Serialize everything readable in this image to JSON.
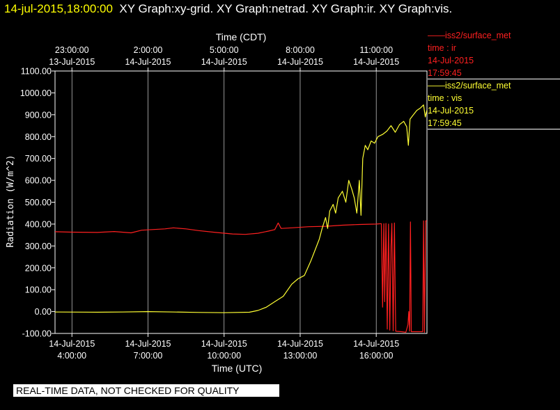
{
  "header": {
    "timestamp": "14-jul-2015,18:00:00",
    "graphs": "XY Graph:xy-grid.  XY Graph:netrad.  XY Graph:ir.  XY Graph:vis."
  },
  "legend": [
    {
      "line1": "——iss2/surface_met",
      "line2": "time : ir",
      "line3": "14-Jul-2015",
      "line4": "17:59:45",
      "color": "#ff2020"
    },
    {
      "line1": "——iss2/surface_met",
      "line2": "time : vis",
      "line3": "14-Jul-2015",
      "line4": "17:59:45",
      "color": "#ffff33"
    }
  ],
  "qc_banner": "REAL-TIME DATA, NOT CHECKED FOR QUALITY",
  "chart_data": {
    "type": "line",
    "title": "",
    "xlabel": "Time (UTC)",
    "xlabel_top": "Time (CDT)",
    "ylabel": "Radiation (W/m^2)",
    "xlim": [
      "2015-07-14T03:20:00Z",
      "2015-07-14T18:00:00Z"
    ],
    "ylim": [
      -100,
      1100
    ],
    "grid": "vertical lines",
    "x_ticks": [
      {
        "x": "2015-07-14T04:00:00Z",
        "date": "14-Jul-2015",
        "time": "4:00:00"
      },
      {
        "x": "2015-07-14T07:00:00Z",
        "date": "14-Jul-2015",
        "time": "7:00:00"
      },
      {
        "x": "2015-07-14T10:00:00Z",
        "date": "14-Jul-2015",
        "time": "10:00:00"
      },
      {
        "x": "2015-07-14T13:00:00Z",
        "date": "14-Jul-2015",
        "time": "13:00:00"
      },
      {
        "x": "2015-07-14T16:00:00Z",
        "date": "14-Jul-2015",
        "time": "16:00:00"
      }
    ],
    "x_ticks_top": [
      {
        "x": "2015-07-14T04:00:00Z",
        "time": "23:00:00",
        "date": "13-Jul-2015"
      },
      {
        "x": "2015-07-14T07:00:00Z",
        "time": "2:00:00",
        "date": "14-Jul-2015"
      },
      {
        "x": "2015-07-14T10:00:00Z",
        "time": "5:00:00",
        "date": "14-Jul-2015"
      },
      {
        "x": "2015-07-14T13:00:00Z",
        "time": "8:00:00",
        "date": "14-Jul-2015"
      },
      {
        "x": "2015-07-14T16:00:00Z",
        "time": "11:00:00",
        "date": "14-Jul-2015"
      }
    ],
    "y_ticks": [
      "1100.00",
      "1000.00",
      "900.00",
      "800.00",
      "700.00",
      "600.00",
      "500.00",
      "400.00",
      "300.00",
      "200.00",
      "100.00",
      "0.00",
      "-100.00"
    ],
    "series": [
      {
        "name": "ir",
        "color": "#ff2020",
        "points": [
          [
            "2015-07-14T03:20:00Z",
            365
          ],
          [
            "2015-07-14T04:00:00Z",
            363
          ],
          [
            "2015-07-14T05:00:00Z",
            362
          ],
          [
            "2015-07-14T05:40:00Z",
            366
          ],
          [
            "2015-07-14T06:20:00Z",
            360
          ],
          [
            "2015-07-14T06:45:00Z",
            372
          ],
          [
            "2015-07-14T07:10:00Z",
            375
          ],
          [
            "2015-07-14T07:40:00Z",
            378
          ],
          [
            "2015-07-14T08:00:00Z",
            383
          ],
          [
            "2015-07-14T08:30:00Z",
            378
          ],
          [
            "2015-07-14T09:00:00Z",
            370
          ],
          [
            "2015-07-14T09:40:00Z",
            362
          ],
          [
            "2015-07-14T10:20:00Z",
            355
          ],
          [
            "2015-07-14T10:50:00Z",
            353
          ],
          [
            "2015-07-14T11:20:00Z",
            358
          ],
          [
            "2015-07-14T11:45:00Z",
            368
          ],
          [
            "2015-07-14T12:00:00Z",
            375
          ],
          [
            "2015-07-14T12:08:00Z",
            405
          ],
          [
            "2015-07-14T12:15:00Z",
            380
          ],
          [
            "2015-07-14T12:40:00Z",
            383
          ],
          [
            "2015-07-14T13:20:00Z",
            388
          ],
          [
            "2015-07-14T14:00:00Z",
            390
          ],
          [
            "2015-07-14T14:40:00Z",
            395
          ],
          [
            "2015-07-14T15:20:00Z",
            398
          ],
          [
            "2015-07-14T16:00:00Z",
            400
          ],
          [
            "2015-07-14T16:12:00Z",
            402
          ],
          [
            "2015-07-14T16:15:00Z",
            20
          ],
          [
            "2015-07-14T16:18:00Z",
            402
          ],
          [
            "2015-07-14T16:20:00Z",
            45
          ],
          [
            "2015-07-14T16:23:00Z",
            403
          ],
          [
            "2015-07-14T16:26:00Z",
            -80
          ],
          [
            "2015-07-14T16:29:00Z",
            400
          ],
          [
            "2015-07-14T16:32:00Z",
            -85
          ],
          [
            "2015-07-14T16:35:00Z",
            300
          ],
          [
            "2015-07-14T16:37:00Z",
            403
          ],
          [
            "2015-07-14T16:40:00Z",
            -88
          ],
          [
            "2015-07-14T16:43:00Z",
            405
          ],
          [
            "2015-07-14T16:46:00Z",
            -90
          ],
          [
            "2015-07-14T17:00:00Z",
            -92
          ],
          [
            "2015-07-14T17:10:00Z",
            -95
          ],
          [
            "2015-07-14T17:15:00Z",
            -60
          ],
          [
            "2015-07-14T17:17:00Z",
            0
          ],
          [
            "2015-07-14T17:19:00Z",
            -90
          ],
          [
            "2015-07-14T17:21:00Z",
            410
          ],
          [
            "2015-07-14T17:23:00Z",
            -92
          ],
          [
            "2015-07-14T17:40:00Z",
            -92
          ],
          [
            "2015-07-14T17:50:00Z",
            -92
          ],
          [
            "2015-07-14T17:52:00Z",
            415
          ],
          [
            "2015-07-14T17:54:00Z",
            -95
          ],
          [
            "2015-07-14T17:57:00Z",
            415
          ],
          [
            "2015-07-14T17:59:45Z",
            415
          ]
        ]
      },
      {
        "name": "vis",
        "color": "#ffff33",
        "points": [
          [
            "2015-07-14T03:20:00Z",
            -2
          ],
          [
            "2015-07-14T05:00:00Z",
            -3
          ],
          [
            "2015-07-14T06:00:00Z",
            -2
          ],
          [
            "2015-07-14T07:00:00Z",
            0
          ],
          [
            "2015-07-14T08:00:00Z",
            -2
          ],
          [
            "2015-07-14T09:00:00Z",
            -4
          ],
          [
            "2015-07-14T10:00:00Z",
            -5
          ],
          [
            "2015-07-14T11:00:00Z",
            -3
          ],
          [
            "2015-07-14T11:20:00Z",
            5
          ],
          [
            "2015-07-14T11:40:00Z",
            20
          ],
          [
            "2015-07-14T12:00:00Z",
            45
          ],
          [
            "2015-07-14T12:20:00Z",
            70
          ],
          [
            "2015-07-14T12:40:00Z",
            125
          ],
          [
            "2015-07-14T12:55:00Z",
            150
          ],
          [
            "2015-07-14T13:10:00Z",
            165
          ],
          [
            "2015-07-14T13:25:00Z",
            230
          ],
          [
            "2015-07-14T13:35:00Z",
            280
          ],
          [
            "2015-07-14T13:45:00Z",
            330
          ],
          [
            "2015-07-14T13:52:00Z",
            380
          ],
          [
            "2015-07-14T14:00:00Z",
            430
          ],
          [
            "2015-07-14T14:05:00Z",
            380
          ],
          [
            "2015-07-14T14:10:00Z",
            460
          ],
          [
            "2015-07-14T14:18:00Z",
            490
          ],
          [
            "2015-07-14T14:24:00Z",
            450
          ],
          [
            "2015-07-14T14:30:00Z",
            520
          ],
          [
            "2015-07-14T14:40:00Z",
            550
          ],
          [
            "2015-07-14T14:48:00Z",
            500
          ],
          [
            "2015-07-14T14:55:00Z",
            600
          ],
          [
            "2015-07-14T15:02:00Z",
            560
          ],
          [
            "2015-07-14T15:08:00Z",
            520
          ],
          [
            "2015-07-14T15:14:00Z",
            450
          ],
          [
            "2015-07-14T15:20:00Z",
            600
          ],
          [
            "2015-07-14T15:24:00Z",
            440
          ],
          [
            "2015-07-14T15:28:00Z",
            700
          ],
          [
            "2015-07-14T15:34:00Z",
            760
          ],
          [
            "2015-07-14T15:40:00Z",
            740
          ],
          [
            "2015-07-14T15:48:00Z",
            780
          ],
          [
            "2015-07-14T15:56:00Z",
            770
          ],
          [
            "2015-07-14T16:04:00Z",
            800
          ],
          [
            "2015-07-14T16:15:00Z",
            810
          ],
          [
            "2015-07-14T16:25:00Z",
            825
          ],
          [
            "2015-07-14T16:35:00Z",
            850
          ],
          [
            "2015-07-14T16:45:00Z",
            820
          ],
          [
            "2015-07-14T16:55:00Z",
            855
          ],
          [
            "2015-07-14T17:05:00Z",
            870
          ],
          [
            "2015-07-14T17:12:00Z",
            845
          ],
          [
            "2015-07-14T17:16:00Z",
            760
          ],
          [
            "2015-07-14T17:20:00Z",
            880
          ],
          [
            "2015-07-14T17:28:00Z",
            900
          ],
          [
            "2015-07-14T17:36:00Z",
            920
          ],
          [
            "2015-07-14T17:44:00Z",
            930
          ],
          [
            "2015-07-14T17:52:00Z",
            945
          ],
          [
            "2015-07-14T17:56:00Z",
            890
          ],
          [
            "2015-07-14T17:59:45Z",
            920
          ]
        ]
      }
    ]
  }
}
